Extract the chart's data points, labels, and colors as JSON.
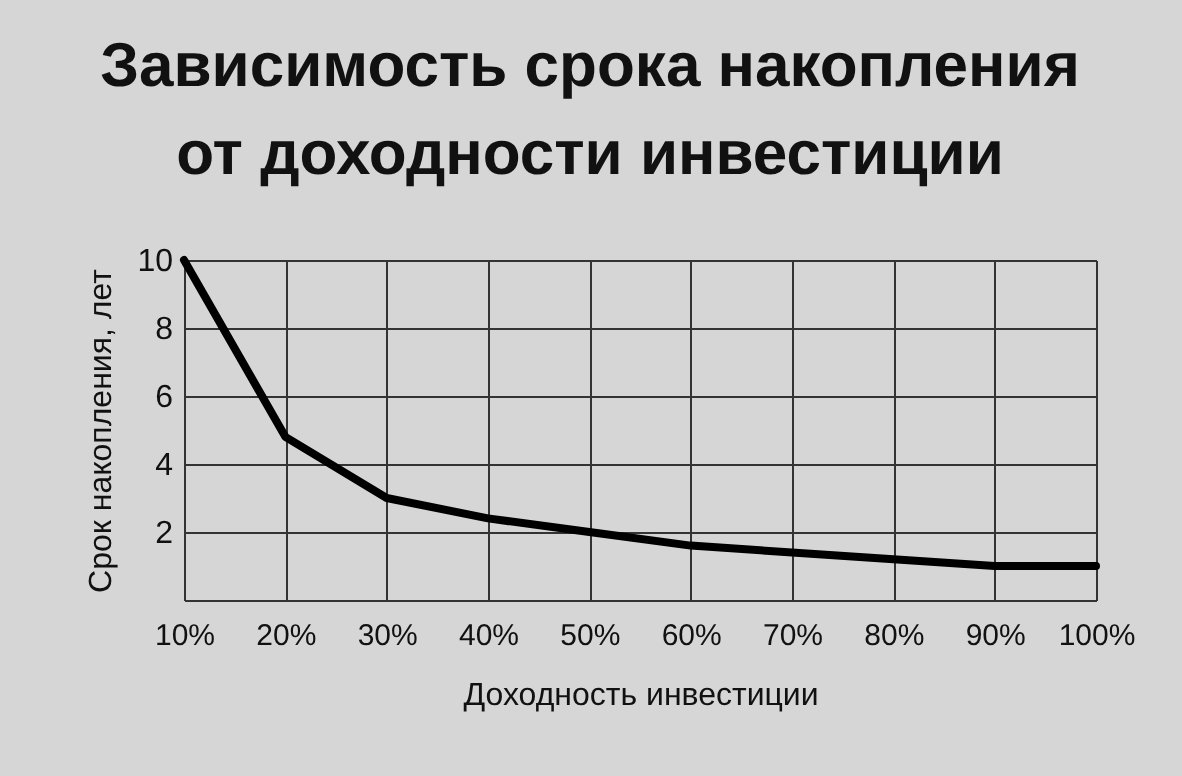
{
  "chart_data": {
    "type": "line",
    "title": [
      "Зависимость срока накопления",
      "от доходности инвестиции"
    ],
    "xlabel": "Доходность инвестиции",
    "ylabel": "Срок накопления,  лет",
    "x": [
      10,
      20,
      30,
      40,
      50,
      60,
      70,
      80,
      90,
      100
    ],
    "series": [
      {
        "color": "#000000",
        "values": [
          10,
          4.8,
          3.0,
          2.4,
          2.0,
          1.6,
          1.4,
          1.2,
          1.0,
          1.0
        ]
      }
    ],
    "xlim": [
      10,
      100
    ],
    "xticks": [
      {
        "value": 10,
        "label": "10%"
      },
      {
        "value": 20,
        "label": "20%"
      },
      {
        "value": 30,
        "label": "30%"
      },
      {
        "value": 40,
        "label": "40%"
      },
      {
        "value": 50,
        "label": "50%"
      },
      {
        "value": 60,
        "label": "60%"
      },
      {
        "value": 70,
        "label": "70%"
      },
      {
        "value": 80,
        "label": "80%"
      },
      {
        "value": 90,
        "label": "90%"
      },
      {
        "value": 100,
        "label": "100%"
      }
    ],
    "ylim": [
      0,
      10
    ],
    "yticks": [
      {
        "value": 0,
        "label": null
      },
      2,
      4,
      6,
      8,
      10
    ],
    "grid": true,
    "legend": false,
    "marker": "none",
    "line_style": "solid"
  }
}
